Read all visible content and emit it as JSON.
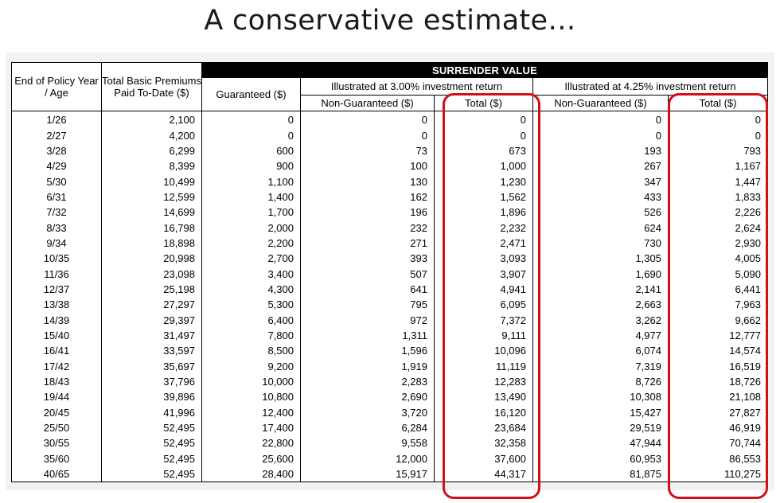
{
  "slide": {
    "title": "A conservative estimate…"
  },
  "table": {
    "col_policy_year": "End of Policy Year / Age",
    "col_premiums": "Total Basic Premiums Paid To-Date ($)",
    "col_guaranteed": "Guaranteed ($)",
    "group_title": "SURRENDER VALUE",
    "group_300": "Illustrated at 3.00% investment return",
    "group_425": "Illustrated at 4.25% investment return",
    "col_non_guaranteed": "Non-Guaranteed ($)",
    "col_total": "Total ($)",
    "rows": [
      [
        "1/26",
        "2,100",
        "0",
        "0",
        "0",
        "0",
        "0"
      ],
      [
        "2/27",
        "4,200",
        "0",
        "0",
        "0",
        "0",
        "0"
      ],
      [
        "3/28",
        "6,299",
        "600",
        "73",
        "673",
        "193",
        "793"
      ],
      [
        "4/29",
        "8,399",
        "900",
        "100",
        "1,000",
        "267",
        "1,167"
      ],
      [
        "5/30",
        "10,499",
        "1,100",
        "130",
        "1,230",
        "347",
        "1,447"
      ],
      [
        "6/31",
        "12,599",
        "1,400",
        "162",
        "1,562",
        "433",
        "1,833"
      ],
      [
        "7/32",
        "14,699",
        "1,700",
        "196",
        "1,896",
        "526",
        "2,226"
      ],
      [
        "8/33",
        "16,798",
        "2,000",
        "232",
        "2,232",
        "624",
        "2,624"
      ],
      [
        "9/34",
        "18,898",
        "2,200",
        "271",
        "2,471",
        "730",
        "2,930"
      ],
      [
        "10/35",
        "20,998",
        "2,700",
        "393",
        "3,093",
        "1,305",
        "4,005"
      ],
      [
        "11/36",
        "23,098",
        "3,400",
        "507",
        "3,907",
        "1,690",
        "5,090"
      ],
      [
        "12/37",
        "25,198",
        "4,300",
        "641",
        "4,941",
        "2,141",
        "6,441"
      ],
      [
        "13/38",
        "27,297",
        "5,300",
        "795",
        "6,095",
        "2,663",
        "7,963"
      ],
      [
        "14/39",
        "29,397",
        "6,400",
        "972",
        "7,372",
        "3,262",
        "9,662"
      ],
      [
        "15/40",
        "31,497",
        "7,800",
        "1,311",
        "9,111",
        "4,977",
        "12,777"
      ],
      [
        "16/41",
        "33,597",
        "8,500",
        "1,596",
        "10,096",
        "6,074",
        "14,574"
      ],
      [
        "17/42",
        "35,697",
        "9,200",
        "1,919",
        "11,119",
        "7,319",
        "16,519"
      ],
      [
        "18/43",
        "37,796",
        "10,000",
        "2,283",
        "12,283",
        "8,726",
        "18,726"
      ],
      [
        "19/44",
        "39,896",
        "10,800",
        "2,690",
        "13,490",
        "10,308",
        "21,108"
      ],
      [
        "20/45",
        "41,996",
        "12,400",
        "3,720",
        "16,120",
        "15,427",
        "27,827"
      ],
      [
        "25/50",
        "52,495",
        "17,400",
        "6,284",
        "23,684",
        "29,519",
        "46,919"
      ],
      [
        "30/55",
        "52,495",
        "22,800",
        "9,558",
        "32,358",
        "47,944",
        "70,744"
      ],
      [
        "35/60",
        "52,495",
        "25,600",
        "12,000",
        "37,600",
        "60,953",
        "86,553"
      ],
      [
        "40/65",
        "52,495",
        "28,400",
        "15,917",
        "44,317",
        "81,875",
        "110,275"
      ]
    ]
  },
  "highlight_color": "#d40f14"
}
